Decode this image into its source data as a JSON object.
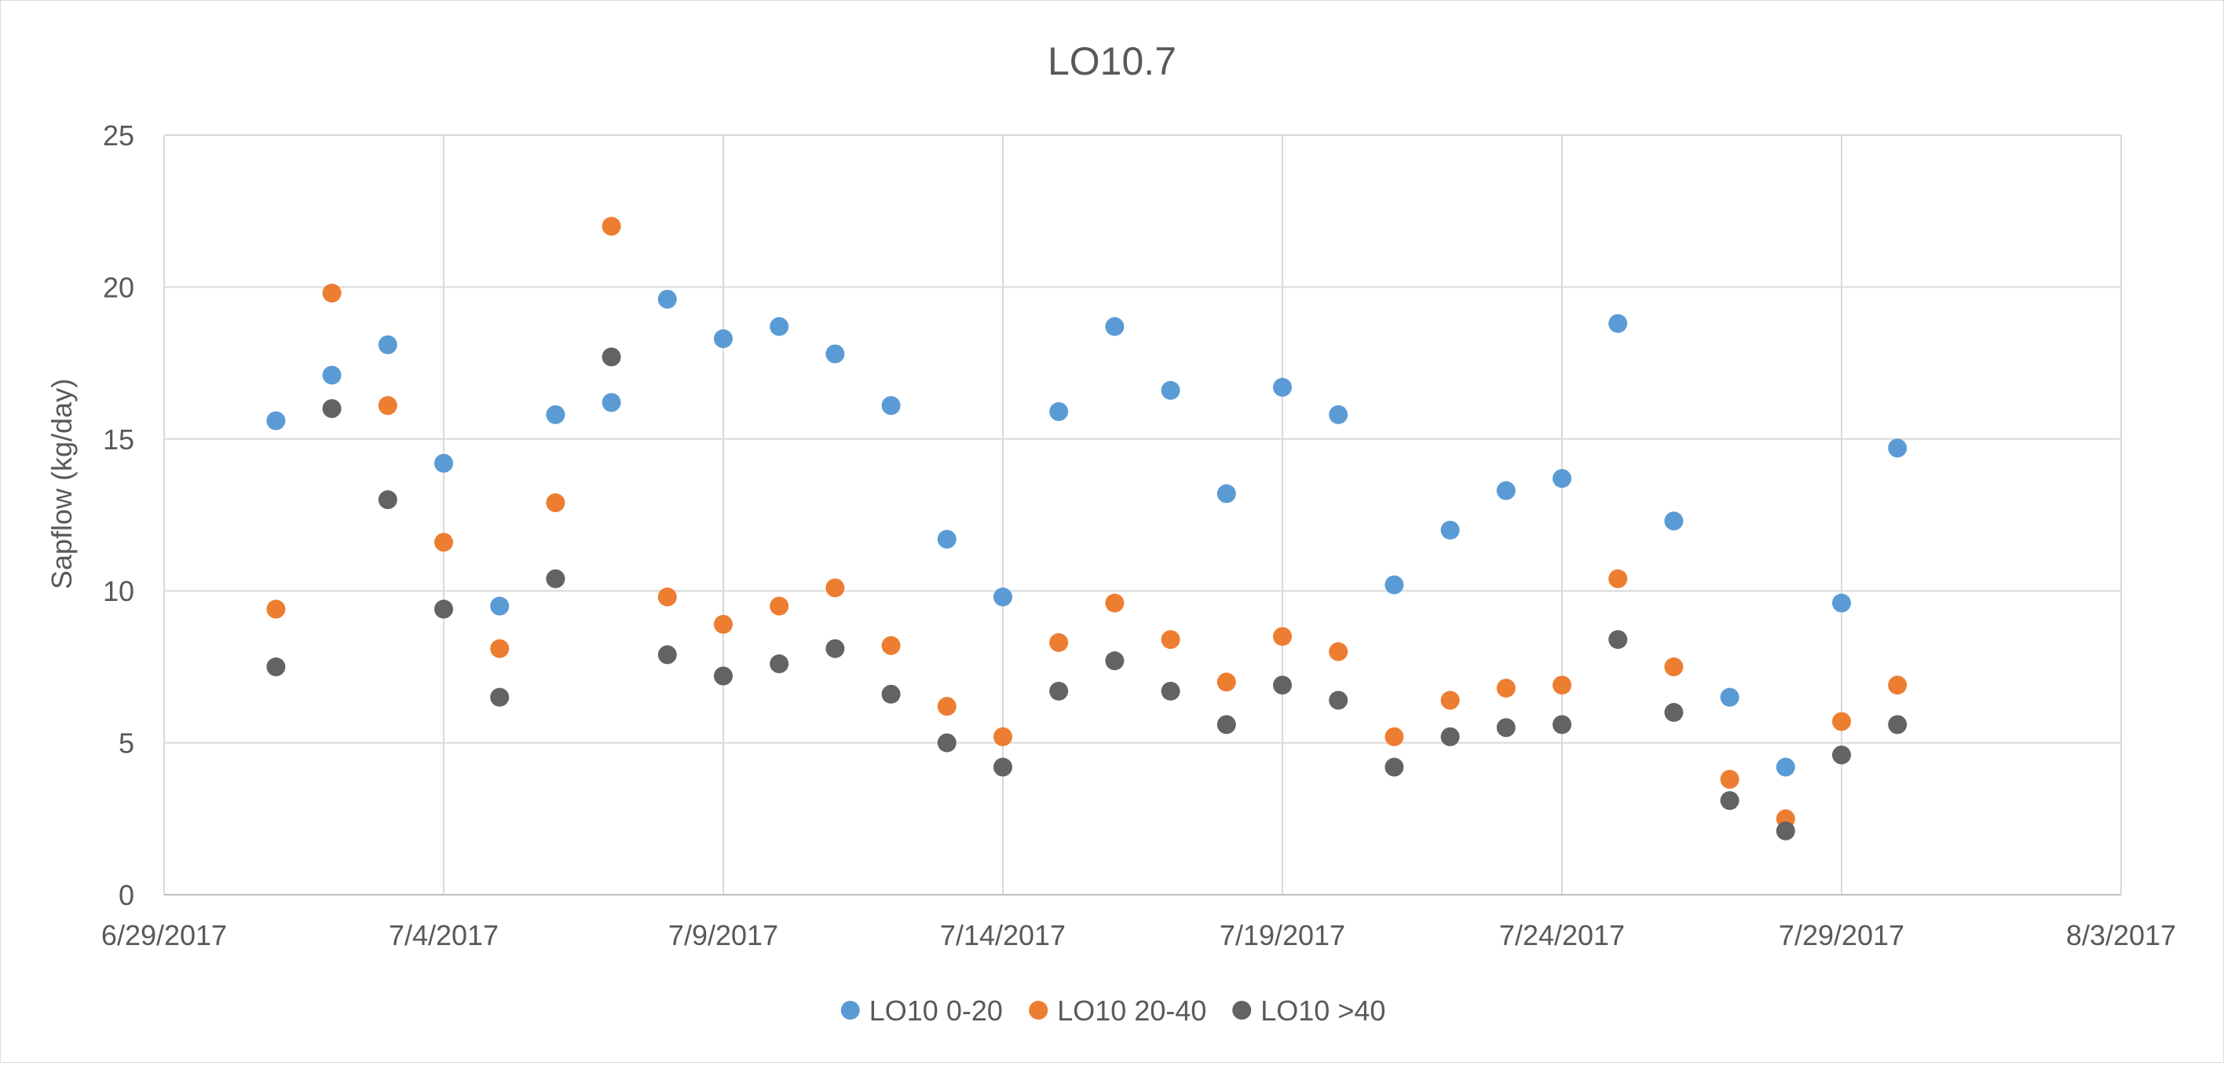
{
  "chart_data": {
    "type": "scatter",
    "title": "LO10.7",
    "xlabel": "",
    "ylabel": "Sapflow (kg/day)",
    "x_axis_type": "date",
    "xlim": [
      "2017-06-29",
      "2017-08-03"
    ],
    "ylim": [
      0,
      25
    ],
    "x_ticks": [
      "6/29/2017",
      "7/4/2017",
      "7/9/2017",
      "7/14/2017",
      "7/19/2017",
      "7/24/2017",
      "7/29/2017",
      "8/3/2017"
    ],
    "y_ticks": [
      "0",
      "5",
      "10",
      "15",
      "20",
      "25"
    ],
    "grid": true,
    "legend_position": "bottom",
    "x": [
      "2017-07-01",
      "2017-07-02",
      "2017-07-03",
      "2017-07-04",
      "2017-07-05",
      "2017-07-06",
      "2017-07-07",
      "2017-07-08",
      "2017-07-09",
      "2017-07-10",
      "2017-07-11",
      "2017-07-12",
      "2017-07-13",
      "2017-07-14",
      "2017-07-15",
      "2017-07-16",
      "2017-07-17",
      "2017-07-18",
      "2017-07-19",
      "2017-07-20",
      "2017-07-21",
      "2017-07-22",
      "2017-07-23",
      "2017-07-24",
      "2017-07-25",
      "2017-07-26",
      "2017-07-27",
      "2017-07-28",
      "2017-07-29",
      "2017-07-30"
    ],
    "series": [
      {
        "name": "LO10 0-20",
        "color": "#5b9bd5",
        "values": [
          15.6,
          17.1,
          18.1,
          14.2,
          9.5,
          15.8,
          16.2,
          19.6,
          18.3,
          18.7,
          17.8,
          16.1,
          11.7,
          9.8,
          15.9,
          18.7,
          16.6,
          13.2,
          16.7,
          15.8,
          10.2,
          12.0,
          13.3,
          13.7,
          18.8,
          12.3,
          6.5,
          4.2,
          9.6,
          14.7
        ]
      },
      {
        "name": "LO10 20-40",
        "color": "#ed7d31",
        "values": [
          9.4,
          19.8,
          16.1,
          11.6,
          8.1,
          12.9,
          22.0,
          9.8,
          8.9,
          9.5,
          10.1,
          8.2,
          6.2,
          5.2,
          8.3,
          9.6,
          8.4,
          7.0,
          8.5,
          8.0,
          5.2,
          6.4,
          6.8,
          6.9,
          10.4,
          7.5,
          3.8,
          2.5,
          5.7,
          6.9
        ]
      },
      {
        "name": "LO10 >40",
        "color": "#636363",
        "values": [
          7.5,
          16.0,
          13.0,
          9.4,
          6.5,
          10.4,
          17.7,
          7.9,
          7.2,
          7.6,
          8.1,
          6.6,
          5.0,
          4.2,
          6.7,
          7.7,
          6.7,
          5.6,
          6.9,
          6.4,
          4.2,
          5.2,
          5.5,
          5.6,
          8.4,
          6.0,
          3.1,
          2.1,
          4.6,
          5.6
        ]
      }
    ]
  }
}
